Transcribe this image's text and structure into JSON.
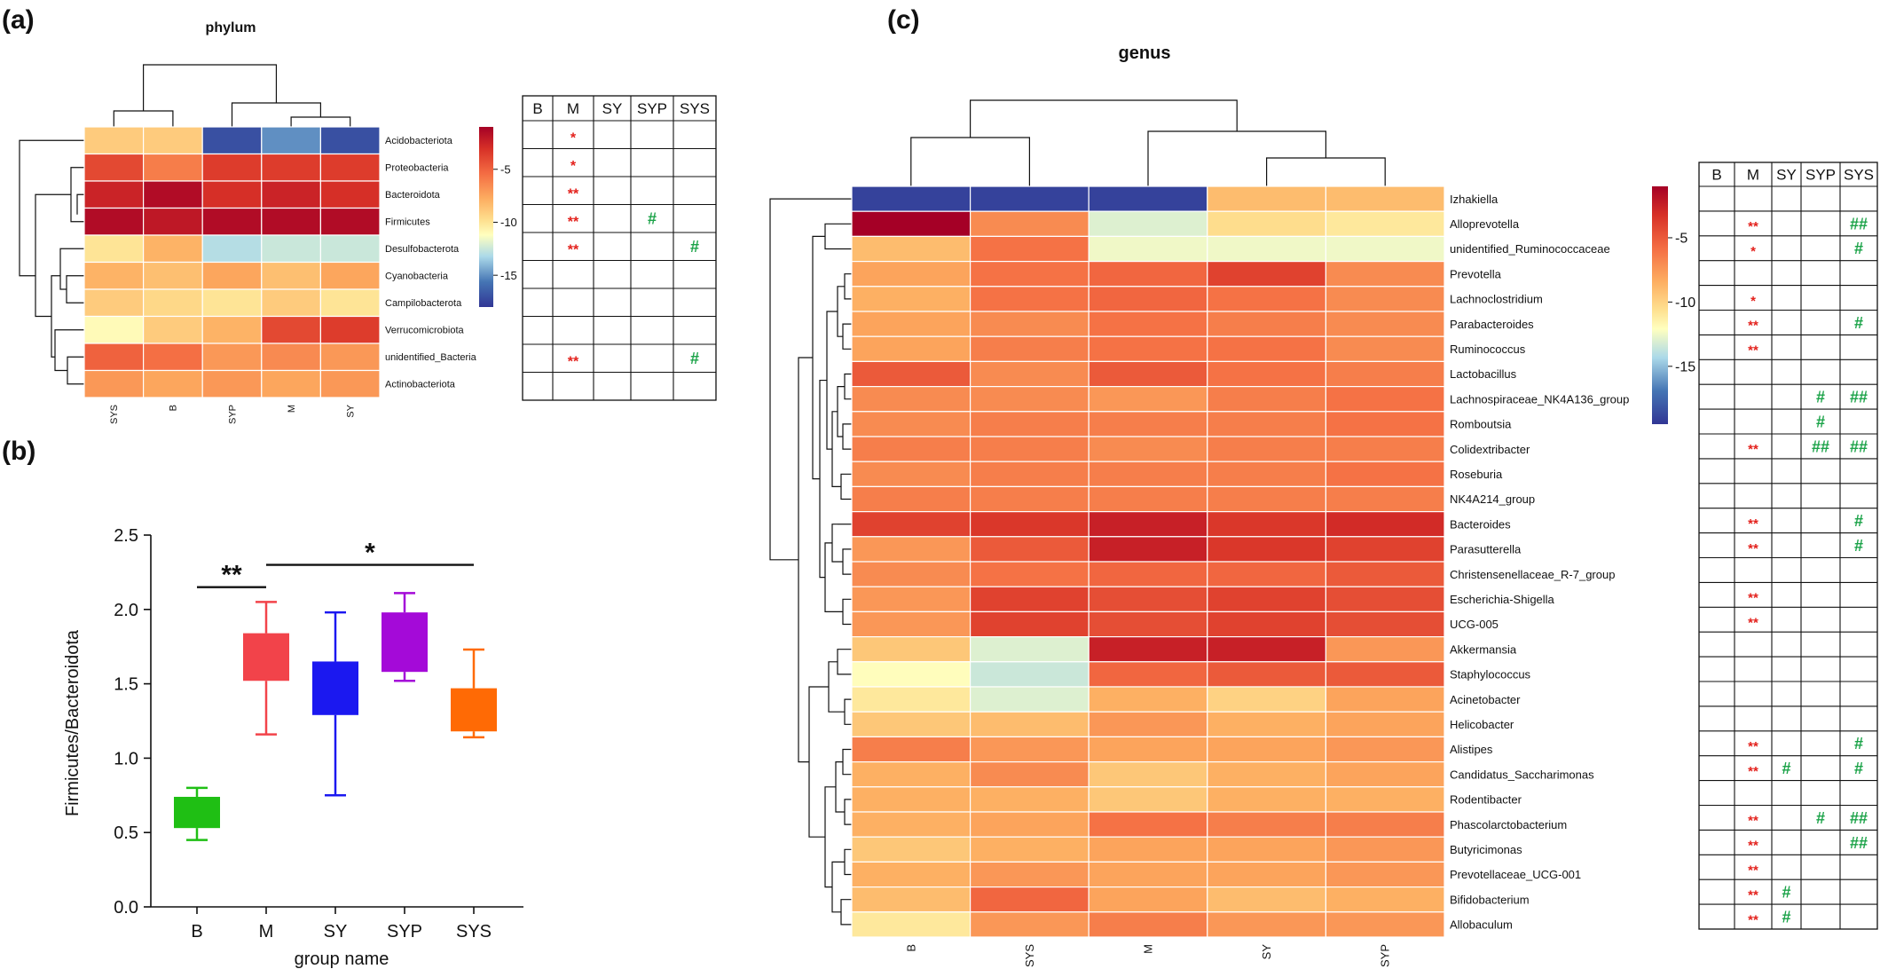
{
  "panels": {
    "a": "(a)",
    "b": "(b)",
    "c": "(c)"
  },
  "colors": {
    "star": "#e3201b",
    "hash": "#1ca349",
    "B": "#1fbf14",
    "M": "#f2434a",
    "SY": "#1b18f0",
    "SYP": "#a40ad8",
    "SYS": "#ff6a05"
  },
  "chart_data": [
    {
      "type": "heatmap",
      "title": "phylum",
      "columns": [
        "SYS",
        "B",
        "SYP",
        "M",
        "SY"
      ],
      "rows": [
        "Acidobacteriota",
        "Proteobacteria",
        "Bacteroidota",
        "Firmicutes",
        "Desulfobacterota",
        "Cyanobacteria",
        "Campilobacterota",
        "Verrucomicrobiota",
        "unidentified_Bacteria",
        "Actinobacteriota"
      ],
      "values": [
        [
          -9,
          -9,
          -17,
          -15,
          -17
        ],
        [
          -4,
          -6,
          -3.5,
          -3.5,
          -3.5
        ],
        [
          -2.5,
          -1.5,
          -3,
          -2.5,
          -3
        ],
        [
          -1.5,
          -2,
          -1.5,
          -1.5,
          -1.5
        ],
        [
          -10,
          -8,
          -13,
          -12.5,
          -12.5
        ],
        [
          -8,
          -8.5,
          -7.5,
          -8.5,
          -7.5
        ],
        [
          -9,
          -9.5,
          -10,
          -9,
          -10
        ],
        [
          -11,
          -9,
          -8,
          -4,
          -3.5
        ],
        [
          -5,
          -5.5,
          -7,
          -6.5,
          -7
        ],
        [
          -7,
          -7.5,
          -7,
          -7.5,
          -7
        ]
      ],
      "colorbar": {
        "ticks": [
          -5,
          -10,
          -15
        ],
        "tick_labels": [
          "-5",
          "-10",
          "-15"
        ],
        "range": [
          -18,
          -1
        ]
      },
      "significance": {
        "columns": [
          "B",
          "M",
          "SY",
          "SYP",
          "SYS"
        ],
        "marks": [
          [
            "",
            "*",
            "",
            "",
            ""
          ],
          [
            "",
            "*",
            "",
            "",
            ""
          ],
          [
            "",
            "**",
            "",
            "",
            ""
          ],
          [
            "",
            "**",
            "",
            "#",
            ""
          ],
          [
            "",
            "**",
            "",
            "",
            "#"
          ],
          [
            "",
            "",
            "",
            "",
            ""
          ],
          [
            "",
            "",
            "",
            "",
            ""
          ],
          [
            "",
            "",
            "",
            "",
            ""
          ],
          [
            "",
            "**",
            "",
            "",
            "#"
          ],
          [
            "",
            "",
            "",
            "",
            ""
          ]
        ]
      }
    },
    {
      "type": "box",
      "title": "",
      "xlabel": "group name",
      "ylabel": "Firmicutes/Bacteroidota",
      "ylim": [
        0,
        2.5
      ],
      "yticks": [
        0.0,
        0.5,
        1.0,
        1.5,
        2.0,
        2.5
      ],
      "ytick_labels": [
        "0.0",
        "0.5",
        "1.0",
        "1.5",
        "2.0",
        "2.5"
      ],
      "categories": [
        "B",
        "M",
        "SY",
        "SYP",
        "SYS"
      ],
      "boxes": [
        {
          "name": "B",
          "min": 0.45,
          "q1": 0.53,
          "q3": 0.74,
          "max": 0.8
        },
        {
          "name": "M",
          "min": 1.16,
          "q1": 1.52,
          "q3": 1.84,
          "max": 2.05
        },
        {
          "name": "SY",
          "min": 0.75,
          "q1": 1.29,
          "q3": 1.65,
          "max": 1.98
        },
        {
          "name": "SYP",
          "min": 1.52,
          "q1": 1.58,
          "q3": 1.98,
          "max": 2.11
        },
        {
          "name": "SYS",
          "min": 1.14,
          "q1": 1.18,
          "q3": 1.47,
          "max": 1.73
        }
      ],
      "annotations": [
        {
          "from": "B",
          "to": "M",
          "y": 2.15,
          "label": "**"
        },
        {
          "from": "M",
          "to": "SYS",
          "y": 2.3,
          "label": "*"
        }
      ]
    },
    {
      "type": "heatmap",
      "title": "genus",
      "columns": [
        "B",
        "SYS",
        "M",
        "SY",
        "SYP"
      ],
      "rows": [
        "Izhakiella",
        "Alloprevotella",
        "unidentified_Ruminococcaceae",
        "Prevotella",
        "Lachnoclostridium",
        "Parabacteroides",
        "Ruminococcus",
        "Lactobacillus",
        "Lachnospiraceae_NK4A136_group",
        "Romboutsia",
        "Colidextribacter",
        "Roseburia",
        "NK4A214_group",
        "Bacteroides",
        "Parasutterella",
        "Christensenellaceae_R-7_group",
        "Escherichia-Shigella",
        "UCG-005",
        "Akkermansia",
        "Staphylococcus",
        "Acinetobacter",
        "Helicobacter",
        "Alistipes",
        "Candidatus_Saccharimonas",
        "Rodentibacter",
        "Phascolarctobacterium",
        "Butyricimonas",
        "Prevotellaceae_UCG-001",
        "Bifidobacterium",
        "Allobaculum"
      ],
      "values": [
        [
          -19,
          -19,
          -19,
          -9,
          -9
        ],
        [
          -1,
          -7,
          -13,
          -10.5,
          -11
        ],
        [
          -9,
          -6,
          -12.5,
          -12.5,
          -12.5
        ],
        [
          -8,
          -6,
          -5.5,
          -4,
          -7
        ],
        [
          -8.5,
          -6,
          -5.5,
          -6,
          -7
        ],
        [
          -8,
          -7,
          -6,
          -6.5,
          -7
        ],
        [
          -8,
          -6.5,
          -6,
          -6,
          -7
        ],
        [
          -5,
          -7,
          -5,
          -6,
          -6.5
        ],
        [
          -7,
          -7,
          -7.5,
          -6.5,
          -6
        ],
        [
          -7,
          -6.5,
          -6.5,
          -6.5,
          -6
        ],
        [
          -6.5,
          -6.5,
          -7,
          -6.5,
          -6.5
        ],
        [
          -7,
          -6.5,
          -6.5,
          -6.5,
          -6
        ],
        [
          -6.5,
          -6.5,
          -6.5,
          -6.5,
          -6.5
        ],
        [
          -4,
          -3.5,
          -2.5,
          -3.5,
          -3
        ],
        [
          -7.5,
          -5,
          -2.5,
          -3.5,
          -4
        ],
        [
          -7,
          -6,
          -5.5,
          -5.5,
          -5
        ],
        [
          -7.5,
          -4,
          -4.5,
          -4,
          -4.5
        ],
        [
          -7.5,
          -4,
          -4.5,
          -4,
          -4.5
        ],
        [
          -9.5,
          -13,
          -2.5,
          -2.5,
          -7.5
        ],
        [
          -12,
          -13.5,
          -5.5,
          -5,
          -5
        ],
        [
          -11,
          -13,
          -8.5,
          -10,
          -8
        ],
        [
          -9.5,
          -9,
          -7.5,
          -8.5,
          -8
        ],
        [
          -6.5,
          -7.5,
          -8,
          -8,
          -7.5
        ],
        [
          -8.5,
          -7,
          -9.5,
          -8.5,
          -8
        ],
        [
          -8.5,
          -8.5,
          -9.5,
          -8.5,
          -8.5
        ],
        [
          -8.5,
          -8,
          -6,
          -6.5,
          -6.5
        ],
        [
          -9.5,
          -8.5,
          -8,
          -8,
          -7.5
        ],
        [
          -8.5,
          -7.5,
          -8,
          -8,
          -7.5
        ],
        [
          -9,
          -5.5,
          -8,
          -9,
          -8.5
        ],
        [
          -11,
          -7.5,
          -6.5,
          -7.5,
          -7.5
        ]
      ],
      "colorbar": {
        "ticks": [
          -5,
          -10,
          -15
        ],
        "tick_labels": [
          "-5",
          "-10",
          "-15"
        ],
        "range": [
          -19.5,
          -1
        ]
      },
      "significance": {
        "columns": [
          "B",
          "M",
          "SY",
          "SYP",
          "SYS"
        ],
        "marks": [
          [
            "",
            "",
            "",
            "",
            ""
          ],
          [
            "",
            "**",
            "",
            "",
            "##"
          ],
          [
            "",
            "*",
            "",
            "",
            "#"
          ],
          [
            "",
            "",
            "",
            "",
            ""
          ],
          [
            "",
            "*",
            "",
            "",
            ""
          ],
          [
            "",
            "**",
            "",
            "",
            "#"
          ],
          [
            "",
            "**",
            "",
            "",
            ""
          ],
          [
            "",
            "",
            "",
            "",
            ""
          ],
          [
            "",
            "",
            "",
            "#",
            "##"
          ],
          [
            "",
            "",
            "",
            "#",
            ""
          ],
          [
            "",
            "**",
            "",
            "##",
            "##"
          ],
          [
            "",
            "",
            "",
            "",
            ""
          ],
          [
            "",
            "",
            "",
            "",
            ""
          ],
          [
            "",
            "**",
            "",
            "",
            "#"
          ],
          [
            "",
            "**",
            "",
            "",
            "#"
          ],
          [
            "",
            "",
            "",
            "",
            ""
          ],
          [
            "",
            "**",
            "",
            "",
            ""
          ],
          [
            "",
            "**",
            "",
            "",
            ""
          ],
          [
            "",
            "",
            "",
            "",
            ""
          ],
          [
            "",
            "",
            "",
            "",
            ""
          ],
          [
            "",
            "",
            "",
            "",
            ""
          ],
          [
            "",
            "",
            "",
            "",
            ""
          ],
          [
            "",
            "**",
            "",
            "",
            "#"
          ],
          [
            "",
            "**",
            "#",
            "",
            "#"
          ],
          [
            "",
            "",
            "",
            "",
            ""
          ],
          [
            "",
            "**",
            "",
            "#",
            "##"
          ],
          [
            "",
            "**",
            "",
            "",
            "##"
          ],
          [
            "",
            "**",
            "",
            "",
            ""
          ],
          [
            "",
            "**",
            "#",
            "",
            ""
          ],
          [
            "",
            "**",
            "#",
            "",
            ""
          ]
        ]
      }
    }
  ]
}
